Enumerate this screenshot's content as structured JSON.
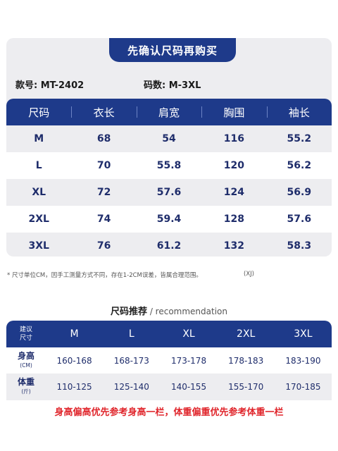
{
  "banner": {
    "title": "先确认尺码再购买"
  },
  "meta": {
    "style_no": "款号: MT-2402",
    "size_range": "码数: M-3XL"
  },
  "size_table": {
    "headers": [
      "尺码",
      "衣长",
      "肩宽",
      "胸围",
      "袖长"
    ],
    "rows": [
      [
        "M",
        "68",
        "54",
        "116",
        "55.2"
      ],
      [
        "L",
        "70",
        "55.8",
        "120",
        "56.2"
      ],
      [
        "XL",
        "72",
        "57.6",
        "124",
        "56.9"
      ],
      [
        "2XL",
        "74",
        "59.4",
        "128",
        "57.6"
      ],
      [
        "3XL",
        "76",
        "61.2",
        "132",
        "58.3"
      ]
    ]
  },
  "note": {
    "text": "* 尺寸单位CM，因手工测量方式不同，存在1-2CM误差，皆属合理范围。",
    "tag": "(XJ)"
  },
  "recommendation": {
    "title_zh": "尺码推荐",
    "title_en": " / recommendation",
    "header_label_line1": "建议",
    "header_label_line2": "尺寸",
    "sizes": [
      "M",
      "L",
      "XL",
      "2XL",
      "3XL"
    ],
    "height": {
      "label": "身高",
      "unit": "(CM)",
      "values": [
        "160-168",
        "168-173",
        "173-178",
        "178-183",
        "183-190"
      ]
    },
    "weight": {
      "label": "体重",
      "unit": "(斤)",
      "values": [
        "110-125",
        "125-140",
        "140-155",
        "155-170",
        "170-185"
      ]
    }
  },
  "footer": {
    "text": "身高偏高优先参考身高一栏，体重偏重优先参考体重一栏"
  },
  "colors": {
    "navy": "#1e3a8a",
    "panel": "#ededf0",
    "footer_red": "#e0262c"
  }
}
